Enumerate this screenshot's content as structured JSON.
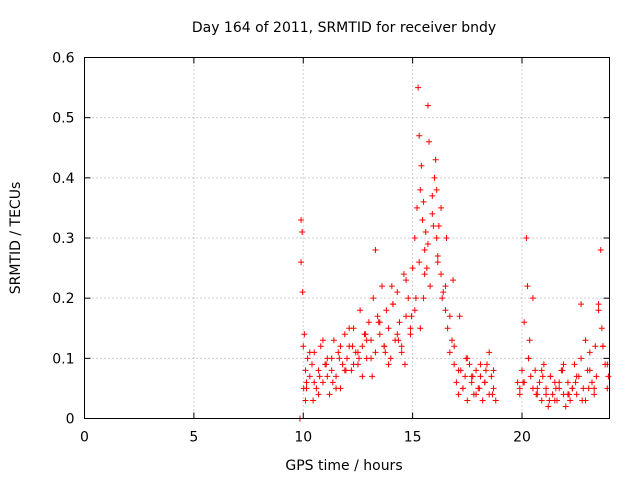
{
  "chart_data": {
    "type": "scatter",
    "title": "Day 164 of 2011, SRMTID for receiver bndy",
    "xlabel": "GPS time / hours",
    "ylabel": "SRMTID / TECUs",
    "xlim": [
      0,
      24
    ],
    "ylim": [
      0,
      0.6
    ],
    "xticks": [
      0,
      5,
      10,
      15,
      20
    ],
    "xtick_labels": [
      "0",
      "5",
      "10",
      "15",
      "20"
    ],
    "yticks": [
      0,
      0.1,
      0.2,
      0.3,
      0.4,
      0.5,
      0.6
    ],
    "ytick_labels": [
      "0",
      "0.1",
      "0.2",
      "0.3",
      "0.4",
      "0.5",
      "0.6"
    ],
    "grid": true,
    "marker": "+",
    "color": "#ff0000",
    "series": [
      {
        "name": "SRMTID",
        "x": [
          9.85,
          9.9,
          9.9,
          9.95,
          9.97,
          10.0,
          10.02,
          10.05,
          10.1,
          10.15,
          10.2,
          10.3,
          10.4,
          10.5,
          10.6,
          10.7,
          10.8,
          10.9,
          11.0,
          11.1,
          11.2,
          11.3,
          11.4,
          11.5,
          11.6,
          11.7,
          11.8,
          11.9,
          12.0,
          12.1,
          12.2,
          12.3,
          12.4,
          12.5,
          12.6,
          12.7,
          12.8,
          12.9,
          13.0,
          13.1,
          13.2,
          13.3,
          13.4,
          13.5,
          13.6,
          13.7,
          13.8,
          13.9,
          14.0,
          14.1,
          14.2,
          14.3,
          14.4,
          14.5,
          14.6,
          14.7,
          14.8,
          14.9,
          15.0,
          15.1,
          15.2,
          15.25,
          15.3,
          15.35,
          15.4,
          15.45,
          15.5,
          15.55,
          15.6,
          15.65,
          15.7,
          15.8,
          15.9,
          16.0,
          16.05,
          16.1,
          16.15,
          16.2,
          16.3,
          16.4,
          16.5,
          16.6,
          16.7,
          16.8,
          16.9,
          17.0,
          17.1,
          17.2,
          17.3,
          17.4,
          17.5,
          17.6,
          17.7,
          17.8,
          17.9,
          18.0,
          18.1,
          18.2,
          18.3,
          18.4,
          18.5,
          18.6,
          18.7,
          18.8,
          19.8,
          19.9,
          20.0,
          20.1,
          20.2,
          20.25,
          20.3,
          20.4,
          20.5,
          20.6,
          20.7,
          20.8,
          20.9,
          21.0,
          21.1,
          21.2,
          21.3,
          21.4,
          21.5,
          21.6,
          21.7,
          21.8,
          21.9,
          22.0,
          22.1,
          22.2,
          22.3,
          22.4,
          22.5,
          22.6,
          22.7,
          22.8,
          22.9,
          23.0,
          23.1,
          23.2,
          23.3,
          23.4,
          23.5,
          23.6,
          23.7,
          23.8,
          23.9,
          10.1,
          10.3,
          10.5,
          10.7,
          10.9,
          11.1,
          11.3,
          11.5,
          11.7,
          11.9,
          12.1,
          12.3,
          12.5,
          12.7,
          12.9,
          13.1,
          13.3,
          13.5,
          13.7,
          13.9,
          14.1,
          14.3,
          14.5,
          14.7,
          14.9,
          15.1,
          15.3,
          15.5,
          15.7,
          15.9,
          16.1,
          16.3,
          16.5,
          16.7,
          16.9,
          17.1,
          17.3,
          17.5,
          17.7,
          17.9,
          18.1,
          18.3,
          18.5,
          18.7,
          19.9,
          20.1,
          20.3,
          20.5,
          20.7,
          20.9,
          21.1,
          21.3,
          21.5,
          21.7,
          21.9,
          22.1,
          22.3,
          22.5,
          22.7,
          22.9,
          23.1,
          23.3,
          23.5,
          23.7,
          23.9,
          10.15,
          10.45,
          10.75,
          11.05,
          11.35,
          11.65,
          11.95,
          12.25,
          12.55,
          12.85,
          13.15,
          13.45,
          13.75,
          14.05,
          14.35,
          14.65,
          14.95,
          15.15,
          15.35,
          15.55,
          15.75,
          15.95,
          16.15,
          16.35,
          16.55,
          16.85,
          17.15,
          17.45,
          17.75,
          18.05,
          18.35,
          18.65,
          20.05,
          20.35,
          20.65,
          20.95,
          21.25,
          21.55,
          21.85,
          22.15,
          22.45,
          22.75,
          23.05,
          23.35,
          23.65,
          23.95
        ],
        "y": [
          0.0,
          0.33,
          0.26,
          0.31,
          0.21,
          0.12,
          0.05,
          0.14,
          0.08,
          0.06,
          0.1,
          0.07,
          0.09,
          0.11,
          0.05,
          0.08,
          0.12,
          0.06,
          0.09,
          0.1,
          0.04,
          0.08,
          0.13,
          0.07,
          0.11,
          0.05,
          0.09,
          0.14,
          0.1,
          0.12,
          0.08,
          0.15,
          0.11,
          0.09,
          0.18,
          0.12,
          0.14,
          0.1,
          0.16,
          0.13,
          0.2,
          0.11,
          0.17,
          0.14,
          0.22,
          0.12,
          0.18,
          0.15,
          0.1,
          0.19,
          0.13,
          0.21,
          0.16,
          0.12,
          0.24,
          0.17,
          0.2,
          0.14,
          0.25,
          0.3,
          0.35,
          0.55,
          0.47,
          0.38,
          0.42,
          0.33,
          0.36,
          0.28,
          0.31,
          0.25,
          0.29,
          0.22,
          0.34,
          0.4,
          0.43,
          0.38,
          0.27,
          0.32,
          0.24,
          0.21,
          0.18,
          0.15,
          0.11,
          0.13,
          0.09,
          0.06,
          0.04,
          0.08,
          0.05,
          0.07,
          0.03,
          0.09,
          0.06,
          0.04,
          0.08,
          0.05,
          0.07,
          0.03,
          0.06,
          0.09,
          0.04,
          0.07,
          0.05,
          0.03,
          0.06,
          0.04,
          0.08,
          0.16,
          0.3,
          0.22,
          0.1,
          0.07,
          0.05,
          0.08,
          0.04,
          0.06,
          0.03,
          0.09,
          0.05,
          0.02,
          0.07,
          0.04,
          0.06,
          0.03,
          0.05,
          0.08,
          0.04,
          0.02,
          0.06,
          0.03,
          0.05,
          0.09,
          0.04,
          0.07,
          0.19,
          0.05,
          0.03,
          0.08,
          0.11,
          0.06,
          0.04,
          0.07,
          0.18,
          0.28,
          0.12,
          0.09,
          0.05,
          0.03,
          0.11,
          0.06,
          0.04,
          0.13,
          0.07,
          0.1,
          0.05,
          0.12,
          0.08,
          0.15,
          0.09,
          0.11,
          0.07,
          0.13,
          0.1,
          0.28,
          0.16,
          0.12,
          0.09,
          0.19,
          0.14,
          0.11,
          0.23,
          0.15,
          0.18,
          0.26,
          0.2,
          0.52,
          0.37,
          0.3,
          0.35,
          0.22,
          0.17,
          0.12,
          0.08,
          0.05,
          0.1,
          0.07,
          0.04,
          0.09,
          0.06,
          0.11,
          0.08,
          0.05,
          0.06,
          0.1,
          0.2,
          0.05,
          0.08,
          0.04,
          0.07,
          0.03,
          0.06,
          0.09,
          0.04,
          0.05,
          0.07,
          0.1,
          0.13,
          0.08,
          0.05,
          0.19,
          0.12,
          0.09,
          0.05,
          0.03,
          0.07,
          0.09,
          0.06,
          0.1,
          0.08,
          0.12,
          0.1,
          0.14,
          0.07,
          0.16,
          0.11,
          0.22,
          0.13,
          0.09,
          0.17,
          0.2,
          0.15,
          0.24,
          0.46,
          0.32,
          0.26,
          0.2,
          0.3,
          0.23,
          0.17,
          0.1,
          0.07,
          0.05,
          0.08,
          0.04,
          0.06,
          0.13,
          0.04,
          0.07,
          0.03,
          0.05,
          0.08,
          0.04,
          0.06,
          0.03,
          0.05,
          0.12,
          0.15,
          0.07
        ]
      }
    ]
  }
}
